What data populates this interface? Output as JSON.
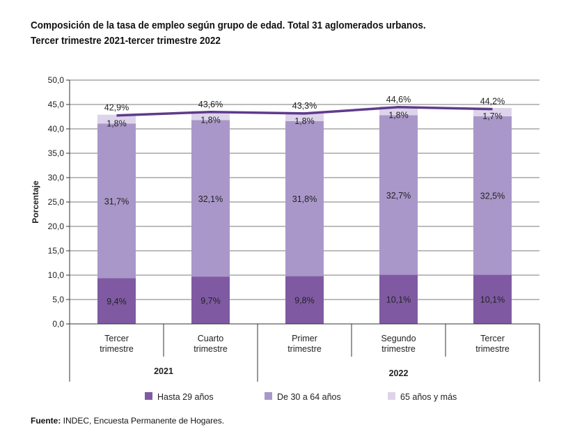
{
  "chart_data": {
    "type": "bar",
    "stacked": true,
    "title": "Composición de la tasa de empleo según grupo de edad. Total 31 aglomerados urbanos.",
    "subtitle": "Tercer trimestre 2021-tercer trimestre 2022",
    "ylabel": "Porcentaje",
    "xlabel": "",
    "ylim": [
      0,
      50
    ],
    "yticks": [
      "0,0",
      "5,0",
      "10,0",
      "15,0",
      "20,0",
      "25,0",
      "30,0",
      "35,0",
      "40,0",
      "45,0",
      "50,0"
    ],
    "grid": true,
    "categories": [
      [
        "Tercer",
        "trimestre"
      ],
      [
        "Cuarto",
        "trimestre"
      ],
      [
        "Primer",
        "trimestre"
      ],
      [
        "Segundo",
        "trimestre"
      ],
      [
        "Tercer",
        "trimestre"
      ]
    ],
    "year_groups": [
      {
        "label": "2021",
        "span": [
          0,
          1
        ]
      },
      {
        "label": "2022",
        "span": [
          2,
          4
        ]
      }
    ],
    "series": [
      {
        "name": "Hasta 29 años",
        "color": "#7f5aa2",
        "values": [
          9.4,
          9.7,
          9.8,
          10.1,
          10.1
        ],
        "labels": [
          "9,4%",
          "9,7%",
          "9,8%",
          "10,1%",
          "10,1%"
        ]
      },
      {
        "name": "De 30 a 64 años",
        "color": "#a997c9",
        "values": [
          31.7,
          32.1,
          31.8,
          32.7,
          32.5
        ],
        "labels": [
          "31,7%",
          "32,1%",
          "31,8%",
          "32,7%",
          "32,5%"
        ]
      },
      {
        "name": "65 años y más",
        "color": "#ddd4eb",
        "values": [
          1.8,
          1.8,
          1.8,
          1.8,
          1.7
        ],
        "labels": [
          "1,8%",
          "1,8%",
          "1,8%",
          "1,8%",
          "1,7%"
        ]
      }
    ],
    "totals": {
      "values": [
        42.9,
        43.6,
        43.3,
        44.6,
        44.2
      ],
      "labels": [
        "42,9%",
        "43,6%",
        "43,3%",
        "44,6%",
        "44,2%"
      ],
      "line_color": "#5e3b8c"
    },
    "legend_position": "bottom"
  },
  "footer": {
    "source_label": "Fuente:",
    "source_text": " INDEC, Encuesta Permanente de Hogares."
  }
}
